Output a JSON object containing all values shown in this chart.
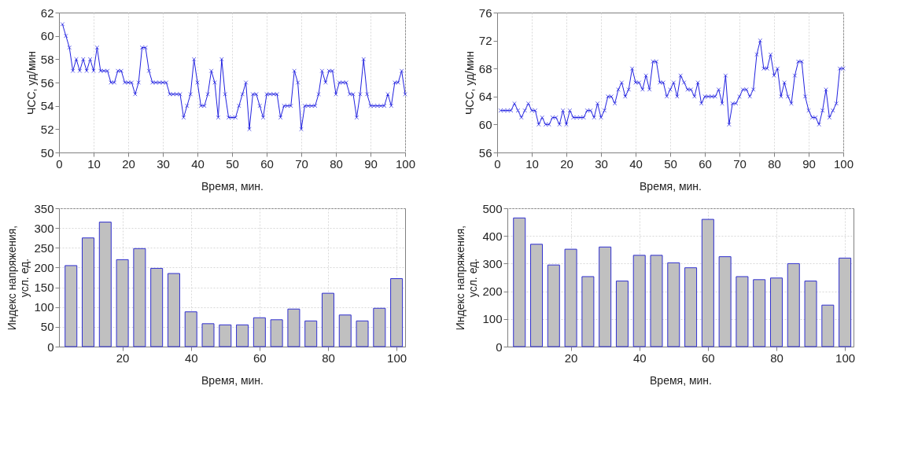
{
  "chart_data": [
    {
      "type": "line",
      "xlabel": "Время, мин.",
      "ylabel": "ЧСС, уд/мин",
      "marker": "cross",
      "line_style": "solid",
      "grid": "x",
      "x": [
        1,
        2,
        3,
        4,
        5,
        6,
        7,
        8,
        9,
        10,
        11,
        12,
        13,
        14,
        15,
        16,
        17,
        18,
        19,
        20,
        21,
        22,
        23,
        24,
        25,
        26,
        27,
        28,
        29,
        30,
        31,
        32,
        33,
        34,
        35,
        36,
        37,
        38,
        39,
        40,
        41,
        42,
        43,
        44,
        45,
        46,
        47,
        48,
        49,
        50,
        51,
        52,
        53,
        54,
        55,
        56,
        57,
        58,
        59,
        60,
        61,
        62,
        63,
        64,
        65,
        66,
        67,
        68,
        69,
        70,
        71,
        72,
        73,
        74,
        75,
        76,
        77,
        78,
        79,
        80,
        81,
        82,
        83,
        84,
        85,
        86,
        87,
        88,
        89,
        90,
        91,
        92,
        93,
        94,
        95,
        96,
        97,
        98,
        99,
        100
      ],
      "series": [
        {
          "color": "#2020e0",
          "values": [
            61,
            60,
            59,
            57,
            58,
            57,
            58,
            57,
            58,
            57,
            59,
            57,
            57,
            57,
            56,
            56,
            57,
            57,
            56,
            56,
            56,
            55,
            56,
            59,
            59,
            57,
            56,
            56,
            56,
            56,
            56,
            55,
            55,
            55,
            55,
            53,
            54,
            55,
            58,
            56,
            54,
            54,
            55,
            57,
            56,
            53,
            58,
            55,
            53,
            53,
            53,
            54,
            55,
            56,
            52,
            55,
            55,
            54,
            53,
            55,
            55,
            55,
            55,
            53,
            54,
            54,
            54,
            57,
            56,
            52,
            54,
            54,
            54,
            54,
            55,
            57,
            56,
            57,
            57,
            55,
            56,
            56,
            56,
            55,
            55,
            53,
            55,
            58,
            55,
            54,
            54,
            54,
            54,
            54,
            55,
            54,
            56,
            56,
            57,
            55
          ]
        }
      ],
      "xlim": [
        0,
        100
      ],
      "xticks": [
        0,
        10,
        20,
        30,
        40,
        50,
        60,
        70,
        80,
        90,
        100
      ],
      "ylim": [
        50,
        62
      ],
      "yticks": [
        50,
        52,
        54,
        56,
        58,
        60,
        62
      ]
    },
    {
      "type": "line",
      "xlabel": "Время, мин.",
      "ylabel": "ЧСС, уд/мин",
      "marker": "cross",
      "line_style": "solid",
      "grid": "x",
      "x": [
        1,
        2,
        3,
        4,
        5,
        6,
        7,
        8,
        9,
        10,
        11,
        12,
        13,
        14,
        15,
        16,
        17,
        18,
        19,
        20,
        21,
        22,
        23,
        24,
        25,
        26,
        27,
        28,
        29,
        30,
        31,
        32,
        33,
        34,
        35,
        36,
        37,
        38,
        39,
        40,
        41,
        42,
        43,
        44,
        45,
        46,
        47,
        48,
        49,
        50,
        51,
        52,
        53,
        54,
        55,
        56,
        57,
        58,
        59,
        60,
        61,
        62,
        63,
        64,
        65,
        66,
        67,
        68,
        69,
        70,
        71,
        72,
        73,
        74,
        75,
        76,
        77,
        78,
        79,
        80,
        81,
        82,
        83,
        84,
        85,
        86,
        87,
        88,
        89,
        90,
        91,
        92,
        93,
        94,
        95,
        96,
        97,
        98,
        99,
        100
      ],
      "series": [
        {
          "color": "#2020e0",
          "values": [
            62,
            62,
            62,
            62,
            63,
            62,
            61,
            62,
            63,
            62,
            62,
            60,
            61,
            60,
            60,
            61,
            61,
            60,
            62,
            60,
            62,
            61,
            61,
            61,
            61,
            62,
            62,
            61,
            63,
            61,
            62,
            64,
            64,
            63,
            65,
            66,
            64,
            65,
            68,
            66,
            66,
            65,
            67,
            65,
            69,
            69,
            66,
            66,
            64,
            65,
            66,
            64,
            67,
            66,
            65,
            65,
            64,
            66,
            63,
            64,
            64,
            64,
            64,
            65,
            63,
            67,
            60,
            63,
            63,
            64,
            65,
            65,
            64,
            65,
            70,
            72,
            68,
            68,
            70,
            67,
            68,
            64,
            66,
            64,
            63,
            67,
            69,
            69,
            64,
            62,
            61,
            61,
            60,
            62,
            65,
            61,
            62,
            63,
            68,
            68
          ]
        }
      ],
      "xlim": [
        0,
        100
      ],
      "xticks": [
        0,
        10,
        20,
        30,
        40,
        50,
        60,
        70,
        80,
        90,
        100
      ],
      "ylim": [
        56,
        76
      ],
      "yticks": [
        56,
        60,
        64,
        68,
        72,
        76
      ]
    },
    {
      "type": "bar",
      "xlabel": "Время, мин.",
      "ylabel": "Индекс напряжения, усл. ед.",
      "grid": true,
      "x": [
        5,
        10,
        15,
        20,
        25,
        30,
        35,
        40,
        45,
        50,
        55,
        60,
        65,
        70,
        75,
        80,
        85,
        90,
        95,
        100
      ],
      "series": [
        {
          "color": "#c0c0c0",
          "values": [
            205,
            275,
            315,
            220,
            248,
            198,
            185,
            88,
            58,
            55,
            55,
            73,
            68,
            95,
            65,
            135,
            80,
            65,
            97,
            172
          ]
        }
      ],
      "xlim": [
        1.5,
        102.5
      ],
      "xticks": [
        20,
        40,
        60,
        80,
        100
      ],
      "ylim": [
        0,
        350
      ],
      "yticks": [
        0,
        50,
        100,
        150,
        200,
        250,
        300,
        350
      ]
    },
    {
      "type": "bar",
      "xlabel": "Время, мин.",
      "ylabel": "Индекс напряжения, усл. ед.",
      "grid": true,
      "x": [
        5,
        10,
        15,
        20,
        25,
        30,
        35,
        40,
        45,
        50,
        55,
        60,
        65,
        70,
        75,
        80,
        85,
        90,
        95,
        100
      ],
      "series": [
        {
          "color": "#c0c0c0",
          "values": [
            465,
            370,
            295,
            352,
            253,
            360,
            237,
            330,
            330,
            303,
            285,
            460,
            325,
            253,
            242,
            248,
            300,
            237,
            150,
            320
          ]
        }
      ],
      "xlim": [
        1.5,
        102.5
      ],
      "xticks": [
        20,
        40,
        60,
        80,
        100
      ],
      "ylim": [
        0,
        500
      ],
      "yticks": [
        0,
        100,
        200,
        300,
        400,
        500
      ]
    }
  ]
}
